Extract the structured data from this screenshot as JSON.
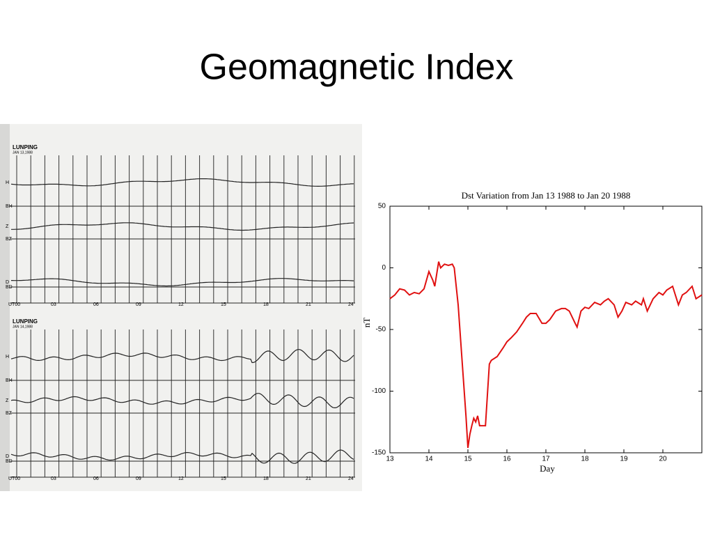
{
  "title": "Geomagnetic Index",
  "magnetograms": [
    {
      "station": "LUNPING",
      "date": "JAN 13,1988",
      "traces": [
        "H",
        "BH",
        "Z",
        "BZ",
        "D",
        "BD"
      ],
      "hours": [
        "UT00",
        "03",
        "06",
        "09",
        "12",
        "15",
        "18",
        "21",
        "24"
      ]
    },
    {
      "station": "LUNPING",
      "date": "JAN 14,1988",
      "traces": [
        "H",
        "BH",
        "Z",
        "BZ",
        "D",
        "BD"
      ],
      "hours": [
        "UT00",
        "03",
        "06",
        "09",
        "12",
        "15",
        "18",
        "21",
        "24"
      ]
    }
  ],
  "chart_data": {
    "type": "line",
    "title": "Dst Variation from Jan 13 1988 to Jan 20 1988",
    "xlabel": "Day",
    "ylabel": "nT",
    "xlim": [
      13,
      21
    ],
    "xticks": [
      13,
      14,
      15,
      16,
      17,
      18,
      19,
      20
    ],
    "ylim": [
      -150,
      50
    ],
    "yticks": [
      -150,
      -100,
      -50,
      0,
      50
    ],
    "x": [
      13.0,
      13.125,
      13.25,
      13.375,
      13.5,
      13.625,
      13.75,
      13.875,
      14.0,
      14.1,
      14.15,
      14.25,
      14.3,
      14.4,
      14.5,
      14.6,
      14.65,
      14.75,
      14.85,
      14.95,
      15.0,
      15.05,
      15.1,
      15.15,
      15.2,
      15.25,
      15.3,
      15.45,
      15.55,
      15.6,
      15.75,
      15.9,
      16.0,
      16.1,
      16.25,
      16.4,
      16.5,
      16.6,
      16.75,
      16.9,
      17.0,
      17.1,
      17.25,
      17.4,
      17.5,
      17.6,
      17.75,
      17.8,
      17.9,
      18.0,
      18.1,
      18.25,
      18.4,
      18.5,
      18.6,
      18.75,
      18.85,
      18.95,
      19.05,
      19.2,
      19.3,
      19.45,
      19.5,
      19.6,
      19.75,
      19.9,
      20.0,
      20.1,
      20.25,
      20.4,
      20.5,
      20.6,
      20.75,
      20.85,
      21.0
    ],
    "series": [
      {
        "name": "Dst",
        "color": "#e01010",
        "values": [
          -25,
          -22,
          -17,
          -18,
          -22,
          -20,
          -21,
          -17,
          -3,
          -10,
          -15,
          5,
          0,
          3,
          2,
          3,
          0,
          -30,
          -75,
          -120,
          -146,
          -135,
          -128,
          -122,
          -125,
          -120,
          -128,
          -128,
          -78,
          -75,
          -72,
          -65,
          -60,
          -57,
          -52,
          -45,
          -40,
          -37,
          -37,
          -45,
          -45,
          -42,
          -35,
          -33,
          -33,
          -35,
          -45,
          -48,
          -35,
          -32,
          -33,
          -28,
          -30,
          -27,
          -25,
          -30,
          -40,
          -35,
          -28,
          -30,
          -27,
          -30,
          -25,
          -35,
          -25,
          -20,
          -22,
          -18,
          -15,
          -30,
          -22,
          -20,
          -15,
          -25,
          -22
        ]
      }
    ]
  }
}
